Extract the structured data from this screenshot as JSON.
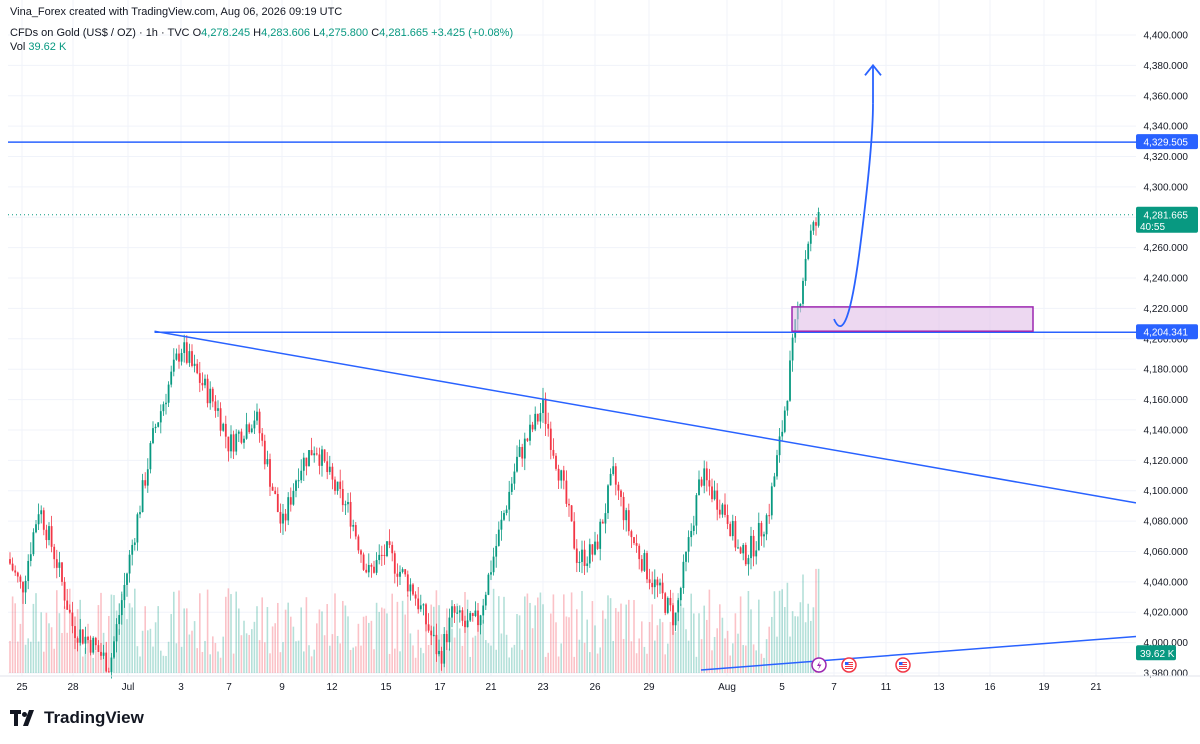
{
  "credit": "Vina_Forex created with TradingView.com, Aug 06, 2026 09:19 UTC",
  "symbol": "CFDs on Gold (US$ / OZ) · 1h · TVC",
  "ohlc": {
    "o_label": "O",
    "o": "4,278.245",
    "h_label": "H",
    "h": "4,283.606",
    "l_label": "L",
    "l": "4,275.800",
    "c_label": "C",
    "c": "4,281.665",
    "chg": "+3.425 (+0.08%)"
  },
  "vol_label": "Vol",
  "vol_value": "39.62 K",
  "brand": "TradingView",
  "colors": {
    "up": "#089981",
    "down": "#f23645",
    "line": "#2962ff",
    "zone_fill": "#e1bee7",
    "zone_border": "#9c27b0",
    "grid": "#f0f3fa"
  },
  "chart_data": {
    "type": "candlestick",
    "timeframe": "1h",
    "y_range": [
      3980,
      4400
    ],
    "y_ticks": [
      "4,400.000",
      "4,380.000",
      "4,360.000",
      "4,340.000",
      "4,320.000",
      "4,300.000",
      "4,280.000",
      "4,260.000",
      "4,240.000",
      "4,220.000",
      "4,200.000",
      "4,180.000",
      "4,160.000",
      "4,140.000",
      "4,120.000",
      "4,100.000",
      "4,080.000",
      "4,060.000",
      "4,040.000",
      "4,020.000",
      "4,000.000",
      "3,980.000"
    ],
    "x_ticks": [
      "25",
      "28",
      "Jul",
      "3",
      "7",
      "9",
      "12",
      "15",
      "17",
      "21",
      "23",
      "26",
      "29",
      "Aug",
      "5",
      "7",
      "11",
      "13",
      "16",
      "19",
      "21"
    ],
    "price_path": [
      {
        "d": "Jun 24",
        "p": 4055
      },
      {
        "d": "Jun 25",
        "p": 4035
      },
      {
        "d": "Jun 26",
        "p": 4090
      },
      {
        "d": "Jun 27",
        "p": 4055
      },
      {
        "d": "Jun 28",
        "p": 4010
      },
      {
        "d": "Jun 29",
        "p": 4000
      },
      {
        "d": "Jun 30",
        "p": 3985
      },
      {
        "d": "Jul 1",
        "p": 4050
      },
      {
        "d": "Jul 2",
        "p": 4140
      },
      {
        "d": "Jul 3",
        "p": 4195
      },
      {
        "d": "Jul 4",
        "p": 4180
      },
      {
        "d": "Jul 6",
        "p": 4155
      },
      {
        "d": "Jul 7",
        "p": 4130
      },
      {
        "d": "Jul 8",
        "p": 4150
      },
      {
        "d": "Jul 9",
        "p": 4075
      },
      {
        "d": "Jul 10",
        "p": 4115
      },
      {
        "d": "Jul 11",
        "p": 4130
      },
      {
        "d": "Jul 12",
        "p": 4105
      },
      {
        "d": "Jul 13",
        "p": 4085
      },
      {
        "d": "Jul 14",
        "p": 4045
      },
      {
        "d": "Jul 15",
        "p": 4060
      },
      {
        "d": "Jul 16",
        "p": 4035
      },
      {
        "d": "Jul 17",
        "p": 3990
      },
      {
        "d": "Jul 18",
        "p": 4020
      },
      {
        "d": "Jul 19",
        "p": 4010
      },
      {
        "d": "Jul 20",
        "p": 4015
      },
      {
        "d": "Jul 21",
        "p": 4050
      },
      {
        "d": "Jul 22",
        "p": 4120
      },
      {
        "d": "Jul 23",
        "p": 4155
      },
      {
        "d": "Jul 24",
        "p": 4110
      },
      {
        "d": "Jul 25",
        "p": 4055
      },
      {
        "d": "Jul 26",
        "p": 4060
      },
      {
        "d": "Jul 27",
        "p": 4110
      },
      {
        "d": "Jul 28",
        "p": 4070
      },
      {
        "d": "Jul 29",
        "p": 4045
      },
      {
        "d": "Jul 30",
        "p": 4015
      },
      {
        "d": "Jul 31",
        "p": 4110
      },
      {
        "d": "Aug 1",
        "p": 4085
      },
      {
        "d": "Aug 2",
        "p": 4055
      },
      {
        "d": "Aug 3",
        "p": 4065
      },
      {
        "d": "Aug 4",
        "p": 4085
      },
      {
        "d": "Aug 5",
        "p": 4140
      },
      {
        "d": "Aug 5b",
        "p": 4205
      },
      {
        "d": "Aug 6",
        "p": 4265
      },
      {
        "d": "Aug 6b",
        "p": 4281.665
      }
    ],
    "price_low": 3980,
    "last_price": 4281.665,
    "countdown": "40:55",
    "levels": [
      {
        "name": "resistance",
        "value": 4329.505,
        "label": "4,329.505"
      },
      {
        "name": "support",
        "value": 4204.341,
        "label": "4,204.341"
      }
    ],
    "trendlines": [
      {
        "name": "descending",
        "from": {
          "d": "Jul 2",
          "p": 4205
        },
        "to": {
          "d": "Aug 21",
          "p": 4092
        }
      },
      {
        "name": "ascending",
        "from": {
          "d": "Jul 31",
          "p": 3982
        },
        "to": {
          "d": "Aug 21",
          "p": 4004
        }
      }
    ],
    "zone": {
      "from": "Aug 5",
      "to": "Aug 17",
      "low": 4205,
      "high": 4221
    },
    "projection": [
      {
        "d": "Aug 7",
        "p": 4213
      },
      {
        "d": "Aug 8",
        "p": 4206
      },
      {
        "d": "Aug 9",
        "p": 4260
      },
      {
        "d": "Aug 10",
        "p": 4355
      }
    ],
    "events": [
      "lightning-icon",
      "us-flag-icon",
      "us-flag-icon"
    ]
  }
}
